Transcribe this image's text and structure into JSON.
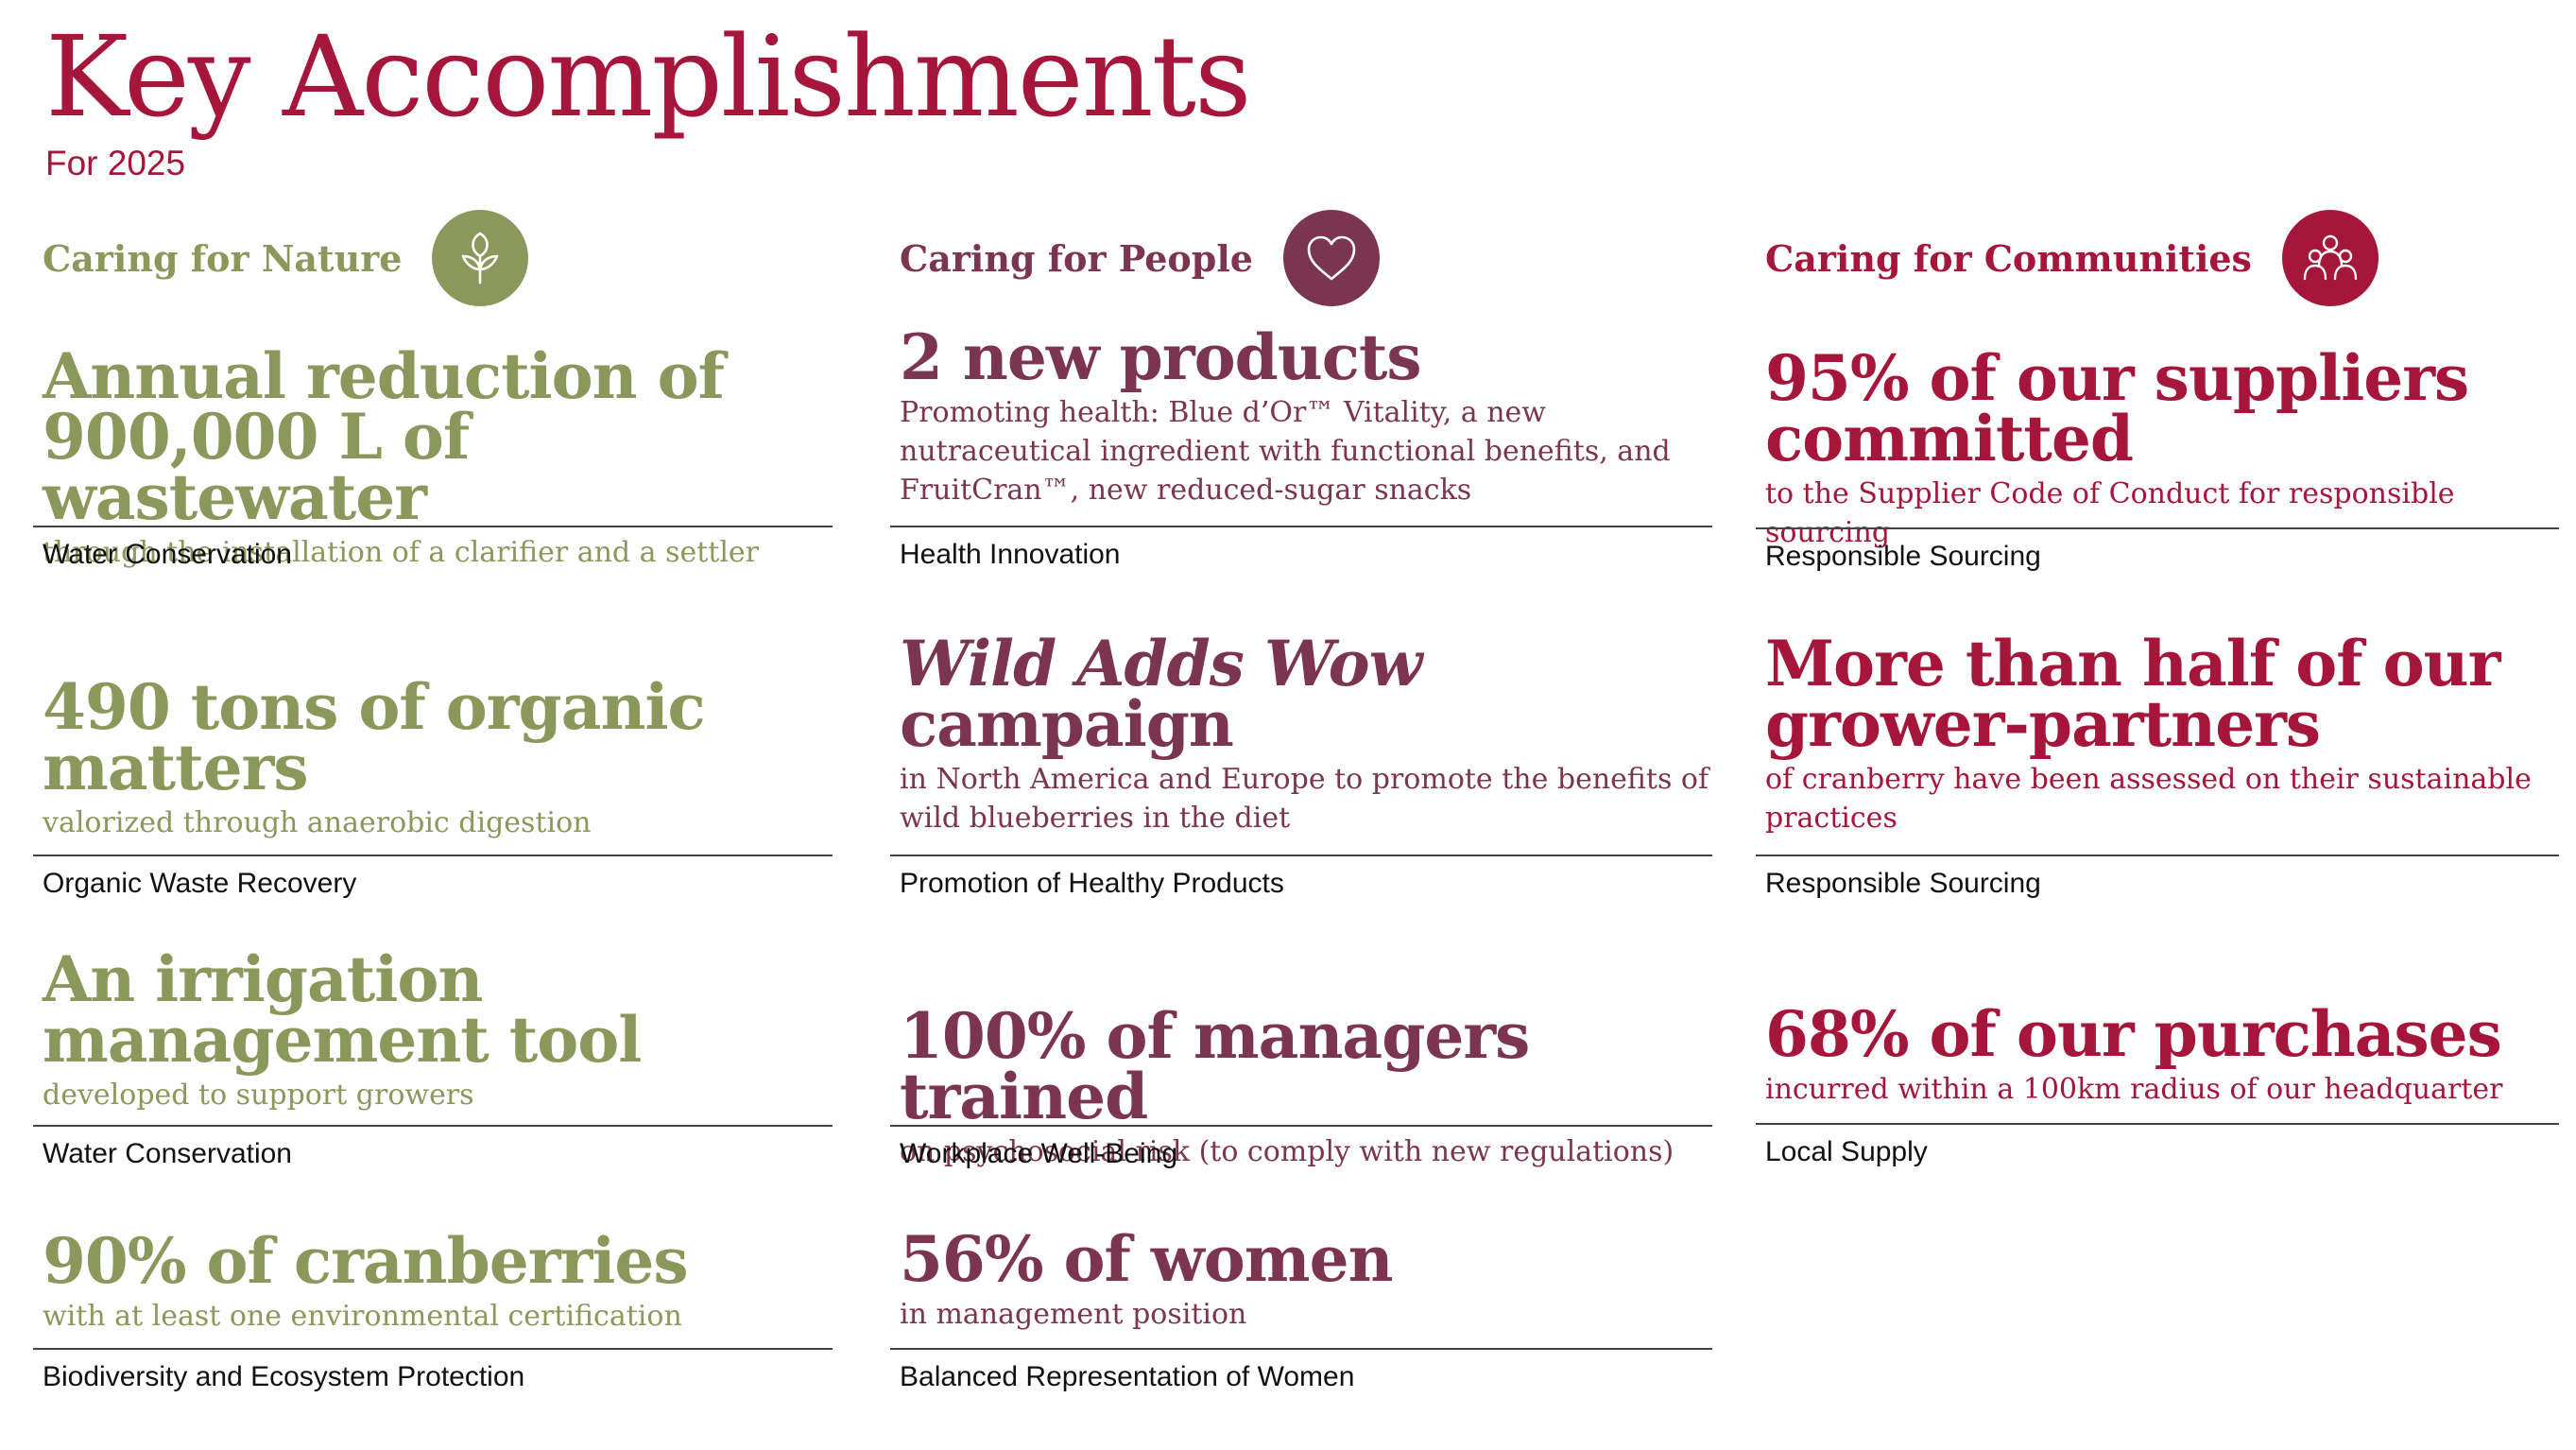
{
  "title": "Key Accomplishments",
  "subtitle": "For 2025",
  "colors": {
    "nature": "#8b975b",
    "people": "#7b3550",
    "communities": "#a6153a"
  },
  "nature": {
    "heading": "Caring for Nature",
    "icon": "leaf-icon",
    "items": [
      {
        "headline": "Annual reduction of 900,000 L of wastewater",
        "description": "through the installation of a clarifier and a settler",
        "tag": "Water Conservation"
      },
      {
        "headline": "490 tons of organic matters",
        "description": "valorized through anaerobic digestion",
        "tag": "Organic Waste Recovery"
      },
      {
        "headline": "An irrigation management tool",
        "description": "developed to support growers",
        "tag": "Water Conservation"
      },
      {
        "headline": "90% of cranberries",
        "description": "with at least one environmental certification",
        "tag": "Biodiversity and Ecosystem Protection"
      }
    ]
  },
  "people": {
    "heading": "Caring for People",
    "icon": "heart-icon",
    "items": [
      {
        "headline": "2 new products",
        "description": "Promoting health: Blue d’Or™ Vitality, a new nutraceutical ingredient with functional benefits, and FruitCran™, new reduced-sugar snacks",
        "tag": "Health Innovation"
      },
      {
        "headline_italic": "Wild Adds Wow",
        "headline": "campaign",
        "description": "in North America and Europe to promote the benefits of wild blueberries in the diet",
        "tag": "Promotion of Healthy Products"
      },
      {
        "headline": "100% of managers trained",
        "description": "on psychosocial risk (to comply with new regulations)",
        "tag": "Workplace Well-Being"
      },
      {
        "headline": "56% of women",
        "description": "in management position",
        "tag": "Balanced Representation of Women"
      }
    ]
  },
  "communities": {
    "heading": "Caring for Communities",
    "icon": "group-people-icon",
    "items": [
      {
        "headline": "95% of our suppliers committed",
        "description": "to the Supplier Code of Conduct for responsible sourcing",
        "tag": "Responsible Sourcing"
      },
      {
        "headline": "More than half of our grower-partners",
        "description": "of cranberry have been assessed on their sustainable practices",
        "tag": "Responsible Sourcing"
      },
      {
        "headline": "68% of our purchases",
        "description": "incurred within a 100km radius of our headquarter",
        "tag": "Local Supply"
      }
    ]
  }
}
